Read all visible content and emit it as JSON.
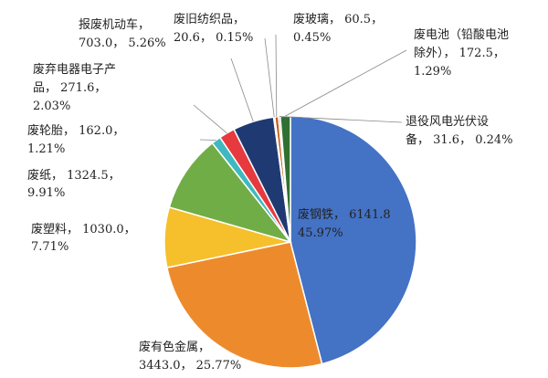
{
  "chart_data": {
    "type": "pie",
    "title": "",
    "slices": [
      {
        "label": "废钢铁",
        "value": 6141.8,
        "percent": "45.97%",
        "value_text": "6141.8",
        "color": "#4472c4"
      },
      {
        "label": "废有色金属",
        "value": 3443.0,
        "percent": "25.77%",
        "value_text": "3443.0",
        "color": "#ed8b2c"
      },
      {
        "label": "废塑料",
        "value": 1030.0,
        "percent": "7.71%",
        "value_text": "1030.0",
        "color": "#f5c02c"
      },
      {
        "label": "废纸",
        "value": 1324.5,
        "percent": "9.91%",
        "value_text": "1324.5",
        "color": "#71ad47"
      },
      {
        "label": "废轮胎",
        "value": 162.0,
        "percent": "1.21%",
        "value_text": "162.0",
        "color": "#3fb9bf"
      },
      {
        "label": "废弃电器电子产品",
        "value": 271.6,
        "percent": "2.03%",
        "value_text": "271.6",
        "color": "#e63a3f"
      },
      {
        "label": "报废机动车",
        "value": 703.0,
        "percent": "5.26%",
        "value_text": "703.0",
        "color": "#1f3a73"
      },
      {
        "label": "废旧纺织品",
        "value": 20.6,
        "percent": "0.15%",
        "value_text": "20.6",
        "color": "#a9d18e"
      },
      {
        "label": "废玻璃",
        "value": 60.5,
        "percent": "0.45%",
        "value_text": "60.5",
        "color": "#c55a11"
      },
      {
        "label": "废电池（铅酸电池除外）",
        "value": 172.5,
        "percent": "1.29%",
        "value_text": "172.5",
        "color": "#2e7031"
      },
      {
        "label": "退役风电光伏设备",
        "value": 31.6,
        "percent": "0.24%",
        "value_text": "31.6",
        "color": "#9a9a9a"
      }
    ],
    "labels": [
      {
        "lines": [
          "废钢铁， 6141.8",
          "45.97%"
        ]
      },
      {
        "lines": [
          "废有色金属，",
          "3443.0， 25.77%"
        ]
      },
      {
        "lines": [
          "废塑料， 1030.0，",
          "7.71%"
        ]
      },
      {
        "lines": [
          "废纸， 1324.5，",
          "9.91%"
        ]
      },
      {
        "lines": [
          "废轮胎， 162.0，",
          "1.21%"
        ]
      },
      {
        "lines": [
          "废弃电器电子产",
          "品， 271.6，",
          "2.03%"
        ]
      },
      {
        "lines": [
          "报废机动车，",
          "703.0， 5.26%"
        ]
      },
      {
        "lines": [
          "废旧纺织品，",
          "20.6， 0.15%"
        ]
      },
      {
        "lines": [
          "废玻璃， 60.5，",
          "0.45%"
        ]
      },
      {
        "lines": [
          "废电池（铅酸电池",
          "除外）， 172.5，",
          "1.29%"
        ]
      },
      {
        "lines": [
          "退役风电光伏设",
          "备， 31.6， 0.24%"
        ]
      }
    ]
  }
}
